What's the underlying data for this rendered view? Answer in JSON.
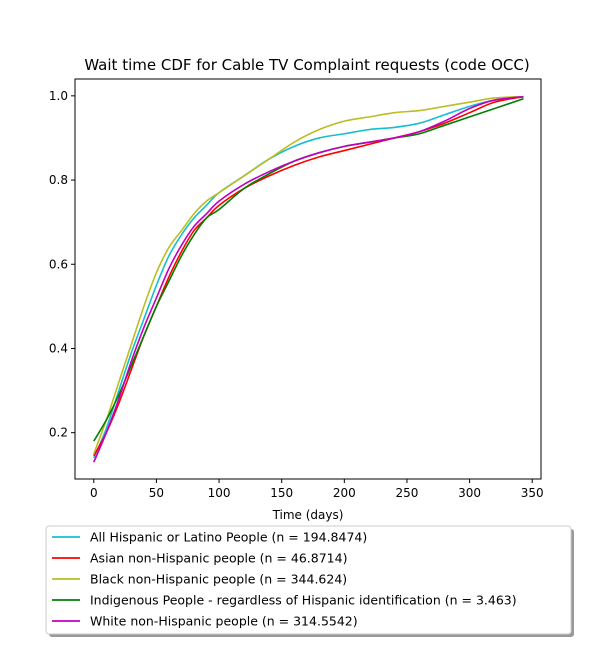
{
  "chart_data": {
    "type": "line",
    "title": "Wait time CDF for Cable TV Complaint  requests (code OCC)",
    "xlabel": "Time (days)",
    "ylabel": "",
    "xlim": [
      -15,
      357
    ],
    "ylim": [
      0.09,
      1.04
    ],
    "xticks": [
      0,
      50,
      100,
      150,
      200,
      250,
      300,
      350
    ],
    "yticks": [
      0.2,
      0.4,
      0.6,
      0.8,
      1.0
    ],
    "xtick_labels": [
      "0",
      "50",
      "100",
      "150",
      "200",
      "250",
      "300",
      "350"
    ],
    "ytick_labels": [
      "0.2",
      "0.4",
      "0.6",
      "0.8",
      "1.0"
    ],
    "grid": false,
    "legend_position": "below plot",
    "x": [
      0,
      10,
      20,
      30,
      40,
      50,
      60,
      70,
      80,
      90,
      100,
      120,
      140,
      160,
      180,
      200,
      220,
      240,
      260,
      280,
      300,
      320,
      343
    ],
    "series": [
      {
        "name": "All Hispanic or Latino People (n = 194.8474)",
        "color": "#17becf",
        "values": [
          0.14,
          0.21,
          0.3,
          0.39,
          0.47,
          0.55,
          0.62,
          0.67,
          0.71,
          0.74,
          0.77,
          0.81,
          0.85,
          0.88,
          0.9,
          0.91,
          0.92,
          0.925,
          0.935,
          0.955,
          0.975,
          0.99,
          0.997
        ]
      },
      {
        "name": "Asian non-Hispanic people (n = 46.8714)",
        "color": "#ff0000",
        "values": [
          0.145,
          0.2,
          0.27,
          0.35,
          0.43,
          0.5,
          0.57,
          0.63,
          0.68,
          0.71,
          0.74,
          0.78,
          0.81,
          0.835,
          0.855,
          0.87,
          0.885,
          0.9,
          0.915,
          0.935,
          0.96,
          0.985,
          0.998
        ]
      },
      {
        "name": "Black non-Hispanic people (n = 344.624)",
        "color": "#bcbd22",
        "values": [
          0.15,
          0.23,
          0.32,
          0.41,
          0.5,
          0.58,
          0.64,
          0.68,
          0.72,
          0.75,
          0.77,
          0.81,
          0.85,
          0.89,
          0.92,
          0.94,
          0.95,
          0.96,
          0.965,
          0.975,
          0.985,
          0.995,
          0.998
        ]
      },
      {
        "name": "Indigenous People - regardless of Hispanic identification (n = 3.463)",
        "color": "#008000",
        "values": [
          0.18,
          0.23,
          0.29,
          0.36,
          0.43,
          0.5,
          0.56,
          0.62,
          0.67,
          0.71,
          0.73,
          0.78,
          0.815,
          0.845,
          0.865,
          0.88,
          0.89,
          0.9,
          0.91,
          0.93,
          0.95,
          0.97,
          0.993
        ]
      },
      {
        "name": "White non-Hispanic people (n = 314.5542)",
        "color": "#bf00bf",
        "values": [
          0.13,
          0.2,
          0.28,
          0.37,
          0.45,
          0.52,
          0.59,
          0.645,
          0.69,
          0.72,
          0.75,
          0.79,
          0.82,
          0.845,
          0.865,
          0.88,
          0.89,
          0.9,
          0.915,
          0.94,
          0.97,
          0.99,
          0.998
        ]
      }
    ]
  }
}
